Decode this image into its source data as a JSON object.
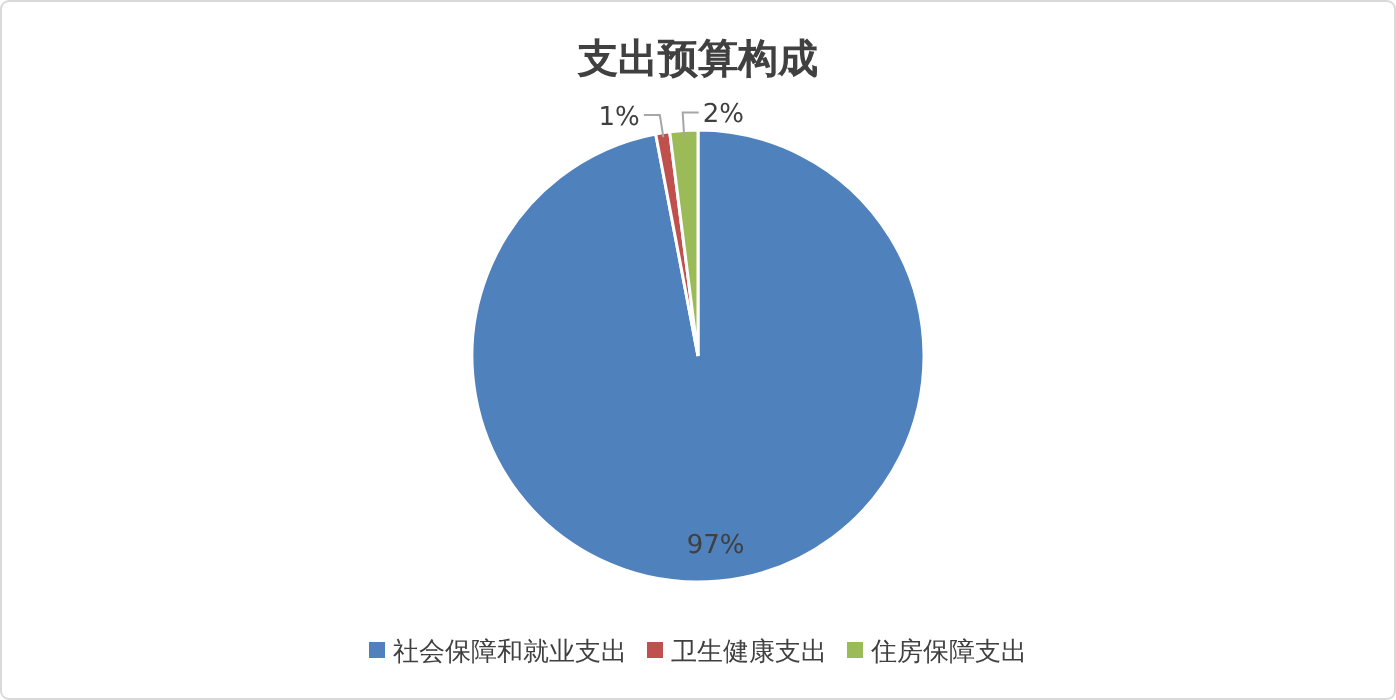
{
  "chart_data": {
    "type": "pie",
    "title": "支出预算构成",
    "categories": [
      "社会保障和就业支出",
      "卫生健康支出",
      "住房保障支出"
    ],
    "values": [
      97,
      1,
      2
    ],
    "colors": [
      "#4f81bd",
      "#c0504d",
      "#9bbb59"
    ],
    "value_labels": [
      "97%",
      "1%",
      "2%"
    ],
    "legend": "bottom"
  }
}
